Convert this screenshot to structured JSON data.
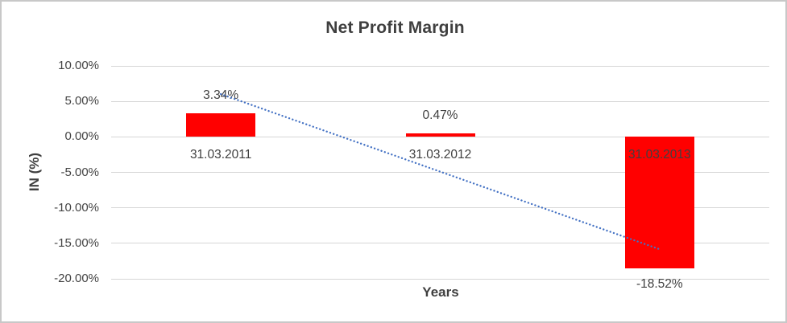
{
  "frame": {
    "background_color": "#FFFFFF",
    "border_color": "#C8C8C8"
  },
  "chart_data": {
    "type": "bar",
    "title": "Net Profit Margin",
    "xlabel": "Years",
    "ylabel": "IN (%)",
    "categories": [
      "31.03.2011",
      "31.03.2012",
      "31.03.2013"
    ],
    "values": [
      3.34,
      0.47,
      -18.52
    ],
    "data_labels": [
      "3.34%",
      "0.47%",
      "-18.52%"
    ],
    "ylim": [
      -20,
      10
    ],
    "y_ticks": [
      {
        "value": 10,
        "label": "10.00%"
      },
      {
        "value": 5,
        "label": "5.00%"
      },
      {
        "value": 0,
        "label": "0.00%"
      },
      {
        "value": -5,
        "label": "-5.00%"
      },
      {
        "value": -10,
        "label": "-10.00%"
      },
      {
        "value": -15,
        "label": "-15.00%"
      },
      {
        "value": -20,
        "label": "-20.00%"
      }
    ],
    "grid": true,
    "gridline_color": "#D6D6D6",
    "legend": "none",
    "bar_color": "#FF0000",
    "label_color": "#404040",
    "trendline": {
      "type": "linear",
      "style": "dotted",
      "color": "#4472C4",
      "start_value": 6.03,
      "end_value": -15.83
    }
  }
}
